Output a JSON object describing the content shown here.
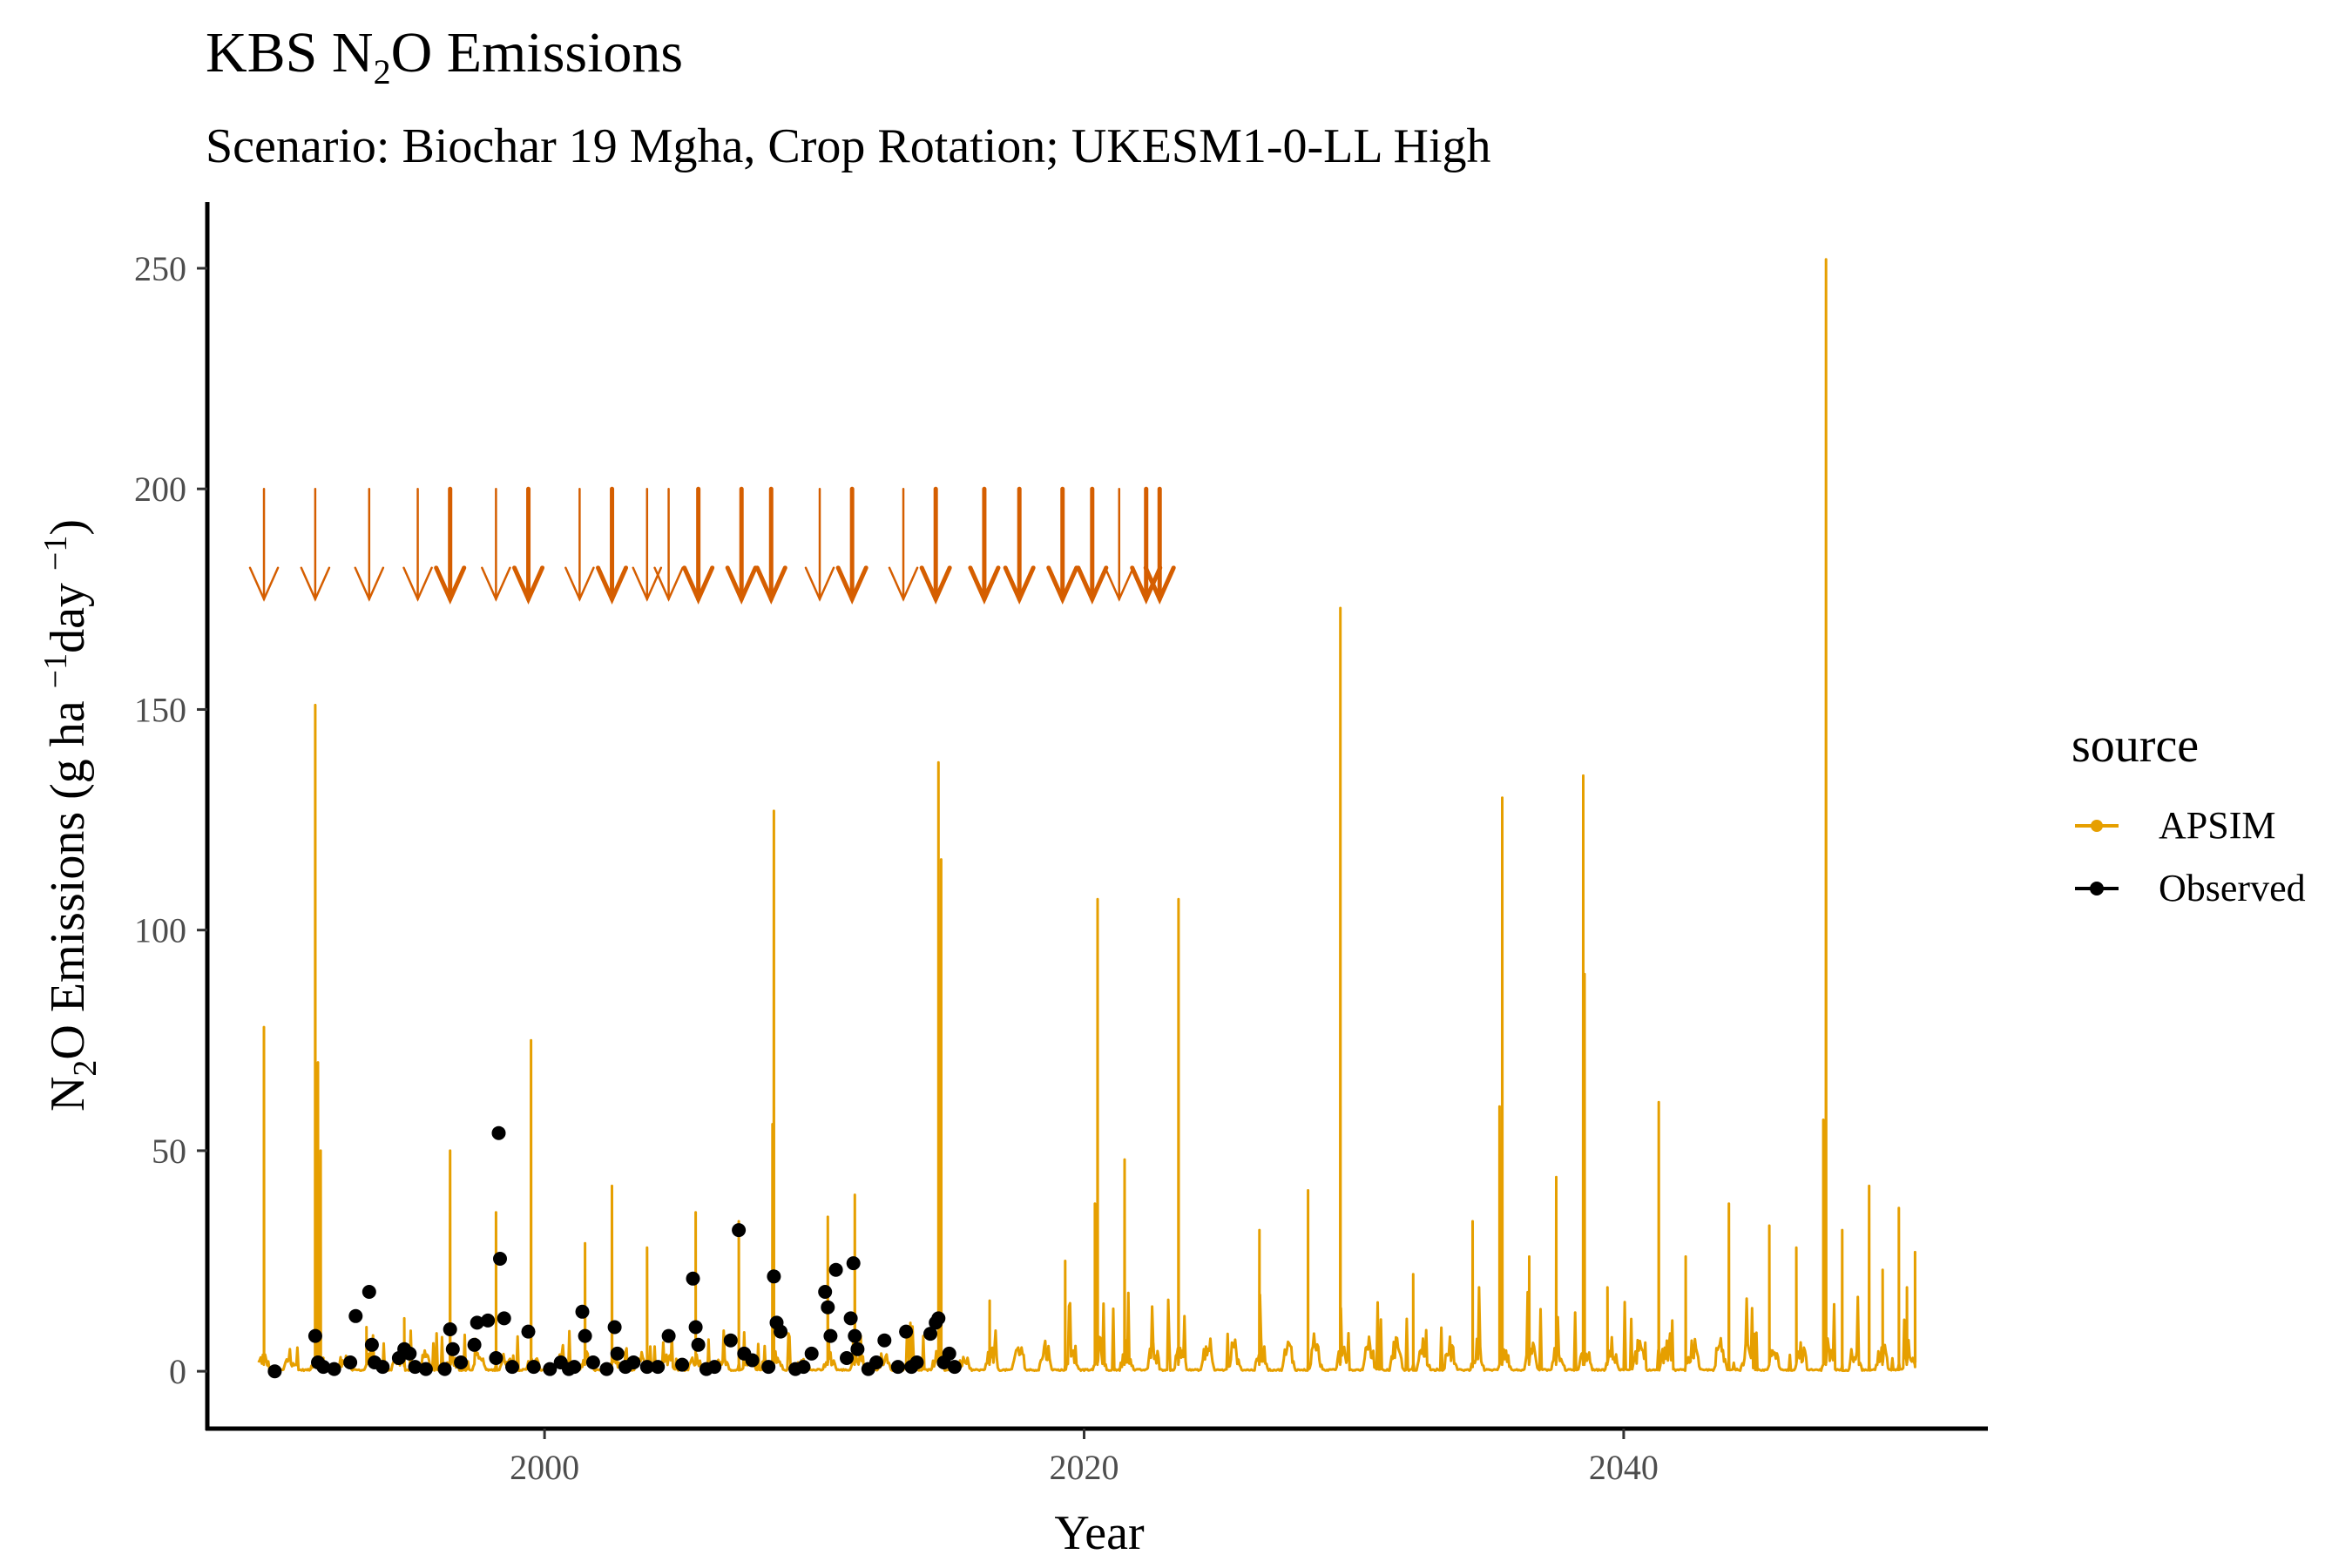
{
  "chart_data": {
    "type": "line+scatter",
    "title": {
      "prefix": "KBS N",
      "sub": "2",
      "suffix": "O Emissions"
    },
    "subtitle": "Scenario: Biochar 19 Mgha, Crop Rotation; UKESM1-0-LL High",
    "xlabel": "Year",
    "ylabel": {
      "p1": "N",
      "sub": "2",
      "p2": "O Emissions (g ha ",
      "exp1": "−1",
      "p3": "day ",
      "exp2": "−1",
      "p4": ")"
    },
    "xlim": [
      1987.5,
      2053.5
    ],
    "ylim": [
      -13,
      265
    ],
    "x_ticks": [
      2000,
      2020,
      2040
    ],
    "x_tick_labels": [
      "2000",
      "2020",
      "2040"
    ],
    "y_ticks": [
      0,
      50,
      100,
      150,
      200,
      250
    ],
    "y_tick_labels": [
      "0",
      "50",
      "100",
      "150",
      "200",
      "250"
    ],
    "grid": false,
    "legend": {
      "title": "source",
      "position": "right",
      "entries": [
        {
          "name": "APSIM",
          "color": "#E69F00"
        },
        {
          "name": "Observed",
          "color": "#000000"
        }
      ]
    },
    "colors": {
      "apsim": "#E69F00",
      "observed": "#000000",
      "arrows": "#D55E00",
      "axis": "#000000"
    },
    "apsim_peaks": [
      {
        "year": 1989.6,
        "value": 78
      },
      {
        "year": 1991.5,
        "value": 151
      },
      {
        "year": 1991.6,
        "value": 70
      },
      {
        "year": 1991.7,
        "value": 50
      },
      {
        "year": 1993.4,
        "value": 10
      },
      {
        "year": 1994.8,
        "value": 12
      },
      {
        "year": 1996.5,
        "value": 50
      },
      {
        "year": 1998.2,
        "value": 36
      },
      {
        "year": 1999.5,
        "value": 75
      },
      {
        "year": 2001.5,
        "value": 29
      },
      {
        "year": 2002.5,
        "value": 42
      },
      {
        "year": 2003.8,
        "value": 28
      },
      {
        "year": 2005.6,
        "value": 36
      },
      {
        "year": 2007.2,
        "value": 34
      },
      {
        "year": 2008.5,
        "value": 127
      },
      {
        "year": 2008.45,
        "value": 56
      },
      {
        "year": 2010.5,
        "value": 35
      },
      {
        "year": 2011.5,
        "value": 40
      },
      {
        "year": 2014.6,
        "value": 138
      },
      {
        "year": 2014.7,
        "value": 116
      },
      {
        "year": 2016.5,
        "value": 16
      },
      {
        "year": 2019.3,
        "value": 25
      },
      {
        "year": 2020.5,
        "value": 107
      },
      {
        "year": 2020.4,
        "value": 38
      },
      {
        "year": 2021.5,
        "value": 48
      },
      {
        "year": 2023.5,
        "value": 107
      },
      {
        "year": 2026.5,
        "value": 32
      },
      {
        "year": 2028.3,
        "value": 41
      },
      {
        "year": 2029.5,
        "value": 173
      },
      {
        "year": 2032.2,
        "value": 22
      },
      {
        "year": 2034.4,
        "value": 34
      },
      {
        "year": 2035.5,
        "value": 130
      },
      {
        "year": 2035.4,
        "value": 60
      },
      {
        "year": 2036.5,
        "value": 26
      },
      {
        "year": 2037.5,
        "value": 44
      },
      {
        "year": 2038.5,
        "value": 135
      },
      {
        "year": 2038.55,
        "value": 90
      },
      {
        "year": 2039.4,
        "value": 19
      },
      {
        "year": 2041.3,
        "value": 61
      },
      {
        "year": 2042.3,
        "value": 26
      },
      {
        "year": 2043.9,
        "value": 38
      },
      {
        "year": 2045.4,
        "value": 33
      },
      {
        "year": 2046.4,
        "value": 28
      },
      {
        "year": 2047.5,
        "value": 252
      },
      {
        "year": 2047.4,
        "value": 57
      },
      {
        "year": 2048.1,
        "value": 32
      },
      {
        "year": 2049.1,
        "value": 42
      },
      {
        "year": 2049.6,
        "value": 23
      },
      {
        "year": 2050.2,
        "value": 37
      },
      {
        "year": 2050.8,
        "value": 27
      },
      {
        "year": 2050.5,
        "value": 19
      }
    ],
    "observed": [
      {
        "year": 1991.5,
        "value": 8
      },
      {
        "year": 1991.6,
        "value": 2
      },
      {
        "year": 1991.8,
        "value": 1
      },
      {
        "year": 1992.2,
        "value": 0.5
      },
      {
        "year": 1992.8,
        "value": 2
      },
      {
        "year": 1993.0,
        "value": 12.5
      },
      {
        "year": 1993.5,
        "value": 18
      },
      {
        "year": 1993.6,
        "value": 6
      },
      {
        "year": 1993.7,
        "value": 2
      },
      {
        "year": 1994.0,
        "value": 1
      },
      {
        "year": 1994.6,
        "value": 3
      },
      {
        "year": 1994.8,
        "value": 5
      },
      {
        "year": 1995.0,
        "value": 4
      },
      {
        "year": 1995.2,
        "value": 1
      },
      {
        "year": 1996.3,
        "value": 0.5
      },
      {
        "year": 1996.5,
        "value": 9.5
      },
      {
        "year": 1996.6,
        "value": 5
      },
      {
        "year": 1996.9,
        "value": 2
      },
      {
        "year": 1997.4,
        "value": 6
      },
      {
        "year": 1997.5,
        "value": 11
      },
      {
        "year": 1997.9,
        "value": 11.5
      },
      {
        "year": 1998.2,
        "value": 3
      },
      {
        "year": 1998.3,
        "value": 54
      },
      {
        "year": 1998.35,
        "value": 25.5
      },
      {
        "year": 1998.5,
        "value": 12
      },
      {
        "year": 1998.8,
        "value": 1
      },
      {
        "year": 1999.4,
        "value": 9
      },
      {
        "year": 1999.6,
        "value": 1
      },
      {
        "year": 2000.2,
        "value": 0.5
      },
      {
        "year": 2000.6,
        "value": 2
      },
      {
        "year": 2001.1,
        "value": 1
      },
      {
        "year": 2001.4,
        "value": 13.5
      },
      {
        "year": 2001.5,
        "value": 8
      },
      {
        "year": 2001.8,
        "value": 2
      },
      {
        "year": 2002.3,
        "value": 0.5
      },
      {
        "year": 2002.6,
        "value": 10
      },
      {
        "year": 2002.7,
        "value": 4
      },
      {
        "year": 2003.3,
        "value": 2
      },
      {
        "year": 2003.8,
        "value": 1
      },
      {
        "year": 2004.2,
        "value": 1
      },
      {
        "year": 2004.6,
        "value": 8
      },
      {
        "year": 2005.1,
        "value": 1.5
      },
      {
        "year": 2005.5,
        "value": 21
      },
      {
        "year": 2005.6,
        "value": 10
      },
      {
        "year": 2005.7,
        "value": 6
      },
      {
        "year": 2006.3,
        "value": 1
      },
      {
        "year": 2006.9,
        "value": 7
      },
      {
        "year": 2007.2,
        "value": 32
      },
      {
        "year": 2007.4,
        "value": 4
      },
      {
        "year": 2007.7,
        "value": 2.5
      },
      {
        "year": 2008.3,
        "value": 1
      },
      {
        "year": 2008.5,
        "value": 21.5
      },
      {
        "year": 2008.6,
        "value": 11
      },
      {
        "year": 2008.75,
        "value": 9
      },
      {
        "year": 2009.3,
        "value": 0.5
      },
      {
        "year": 2009.9,
        "value": 4
      },
      {
        "year": 2010.4,
        "value": 18
      },
      {
        "year": 2010.5,
        "value": 14.5
      },
      {
        "year": 2010.6,
        "value": 8
      },
      {
        "year": 2010.8,
        "value": 23
      },
      {
        "year": 2011.2,
        "value": 3
      },
      {
        "year": 2011.35,
        "value": 12
      },
      {
        "year": 2011.45,
        "value": 24.5
      },
      {
        "year": 2011.5,
        "value": 8
      },
      {
        "year": 2011.6,
        "value": 5
      },
      {
        "year": 2012.3,
        "value": 2
      },
      {
        "year": 2012.6,
        "value": 7
      },
      {
        "year": 2013.1,
        "value": 1
      },
      {
        "year": 2013.4,
        "value": 9
      },
      {
        "year": 2013.8,
        "value": 2
      },
      {
        "year": 2014.3,
        "value": 8.5
      },
      {
        "year": 2014.5,
        "value": 11
      },
      {
        "year": 2014.6,
        "value": 12
      },
      {
        "year": 2014.8,
        "value": 2
      },
      {
        "year": 2015.0,
        "value": 4
      },
      {
        "year": 2015.2,
        "value": 1
      },
      {
        "year": 1990.0,
        "value": 0
      },
      {
        "year": 1995.6,
        "value": 0.5
      },
      {
        "year": 2000.9,
        "value": 0.5
      },
      {
        "year": 2003.0,
        "value": 1
      },
      {
        "year": 2006.0,
        "value": 0.5
      },
      {
        "year": 2009.6,
        "value": 1
      },
      {
        "year": 2012.0,
        "value": 0.5
      },
      {
        "year": 2013.6,
        "value": 1
      }
    ],
    "fertilizer_arrows": [
      {
        "year": 1989.6,
        "thick": false
      },
      {
        "year": 1991.5,
        "thick": false
      },
      {
        "year": 1993.5,
        "thick": false
      },
      {
        "year": 1995.3,
        "thick": false
      },
      {
        "year": 1996.5,
        "thick": true
      },
      {
        "year": 1998.2,
        "thick": false
      },
      {
        "year": 1999.4,
        "thick": true
      },
      {
        "year": 2001.3,
        "thick": false
      },
      {
        "year": 2002.5,
        "thick": true
      },
      {
        "year": 2003.8,
        "thick": false
      },
      {
        "year": 2004.6,
        "thick": false
      },
      {
        "year": 2005.7,
        "thick": true
      },
      {
        "year": 2007.3,
        "thick": true
      },
      {
        "year": 2008.4,
        "thick": true
      },
      {
        "year": 2010.2,
        "thick": false
      },
      {
        "year": 2011.4,
        "thick": true
      },
      {
        "year": 2013.3,
        "thick": false
      },
      {
        "year": 2014.5,
        "thick": true
      },
      {
        "year": 2016.3,
        "thick": true
      },
      {
        "year": 2017.6,
        "thick": true
      },
      {
        "year": 2019.2,
        "thick": true
      },
      {
        "year": 2020.3,
        "thick": true
      },
      {
        "year": 2021.3,
        "thick": false
      },
      {
        "year": 2022.3,
        "thick": true
      },
      {
        "year": 2022.8,
        "thick": true
      }
    ],
    "arrow_value_range": [
      175,
      200
    ]
  }
}
